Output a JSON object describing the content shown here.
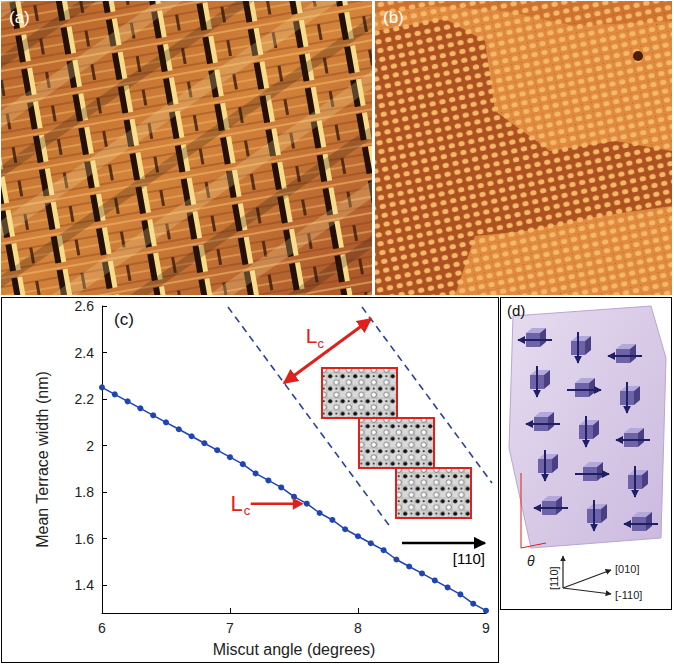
{
  "chart_data": {
    "type": "line",
    "label": "(c)",
    "x_label": "Miscut angle (degrees)",
    "y_label": "Mean Terrace width (nm)",
    "x": [
      6,
      6.1,
      6.2,
      6.3,
      6.4,
      6.5,
      6.6,
      6.7,
      6.8,
      6.9,
      7,
      7.1,
      7.2,
      7.3,
      7.4,
      7.5,
      7.6,
      7.7,
      7.8,
      7.9,
      8,
      8.1,
      8.2,
      8.3,
      8.4,
      8.5,
      8.6,
      8.7,
      8.8,
      8.9,
      9
    ],
    "values": [
      2.25,
      2.22,
      2.19,
      2.16,
      2.13,
      2.1,
      2.07,
      2.04,
      2.01,
      1.98,
      1.95,
      1.92,
      1.88,
      1.85,
      1.82,
      1.78,
      1.75,
      1.71,
      1.68,
      1.64,
      1.61,
      1.58,
      1.55,
      1.51,
      1.48,
      1.45,
      1.42,
      1.39,
      1.36,
      1.32,
      1.29
    ],
    "color": "#1f45b5",
    "marker": "circle",
    "xlim": [
      6,
      9
    ],
    "xticks": [
      6,
      7,
      8,
      9
    ],
    "ylim": [
      1.28,
      2.6
    ],
    "yticks": [
      1.4,
      1.6,
      1.8,
      2,
      2.2,
      2.4,
      2.6
    ],
    "grid": false,
    "annotations": [
      {
        "text": "L",
        "subscript": "c",
        "x": 7.6,
        "y": 1.75,
        "color": "#e0201b"
      }
    ],
    "inset": {
      "width_label": {
        "text": "L",
        "subscript": "c"
      },
      "direction_label": "[110]"
    }
  },
  "panels": {
    "a": {
      "label": "(a)"
    },
    "b": {
      "label": "(b)"
    },
    "d": {
      "label": "(d)",
      "angle_label": "θ",
      "directions": [
        "[010]",
        "[-110]",
        "[110]"
      ]
    }
  }
}
